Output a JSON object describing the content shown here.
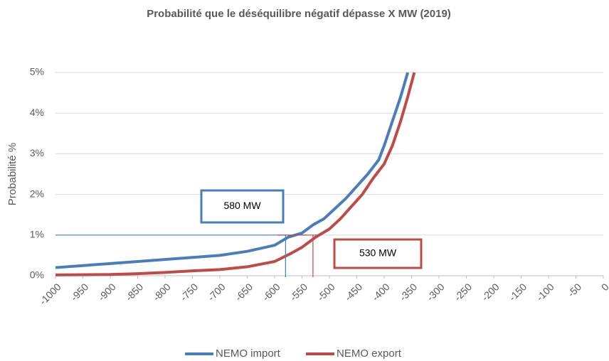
{
  "chart_data": {
    "type": "line",
    "title": "Probabilité que le déséquilibre négatif dépasse X MW (2019)",
    "y_label": "Probabilité %",
    "xlim": [
      -1000,
      0
    ],
    "xticks": [
      -1000,
      -950,
      -900,
      -850,
      -800,
      -750,
      -700,
      -650,
      -600,
      -550,
      -500,
      -450,
      -400,
      -350,
      -300,
      -250,
      -200,
      -150,
      -100,
      -50,
      0
    ],
    "ylim": [
      0,
      5
    ],
    "yticks": [
      {
        "value": 0,
        "label": "0%"
      },
      {
        "value": 1,
        "label": "1%"
      },
      {
        "value": 2,
        "label": "2%"
      },
      {
        "value": 3,
        "label": "3%"
      },
      {
        "value": 4,
        "label": "4%"
      },
      {
        "value": 5,
        "label": "5%"
      }
    ],
    "grid": true,
    "legend": "bottom",
    "series": [
      {
        "name": "NEMO import",
        "color": "#4a7ebb",
        "x": [
          -1000,
          -950,
          -900,
          -850,
          -800,
          -750,
          -700,
          -650,
          -600,
          -575,
          -550,
          -530,
          -510,
          -490,
          -470,
          -450,
          -430,
          -410,
          -400,
          -385,
          -370,
          -357
        ],
        "values": [
          0.2,
          0.25,
          0.3,
          0.35,
          0.4,
          0.45,
          0.5,
          0.6,
          0.75,
          0.95,
          1.05,
          1.25,
          1.4,
          1.65,
          1.9,
          2.2,
          2.5,
          2.85,
          3.2,
          3.8,
          4.4,
          5.0
        ]
      },
      {
        "name": "NEMO export",
        "color": "#be4b48",
        "x": [
          -1000,
          -900,
          -850,
          -800,
          -750,
          -700,
          -650,
          -600,
          -570,
          -550,
          -525,
          -500,
          -480,
          -460,
          -440,
          -420,
          -400,
          -385,
          -370,
          -357,
          -345
        ],
        "values": [
          0.02,
          0.03,
          0.05,
          0.08,
          0.12,
          0.15,
          0.22,
          0.35,
          0.55,
          0.7,
          0.95,
          1.15,
          1.4,
          1.7,
          2.0,
          2.4,
          2.75,
          3.2,
          3.8,
          4.4,
          5.0
        ]
      }
    ],
    "markers": [
      {
        "x": -580,
        "y": 1,
        "label": "580 MW",
        "color": "#4a7ebb"
      },
      {
        "x": -530,
        "y": 1,
        "label": "530 MW",
        "color": "#be4b48"
      }
    ]
  }
}
